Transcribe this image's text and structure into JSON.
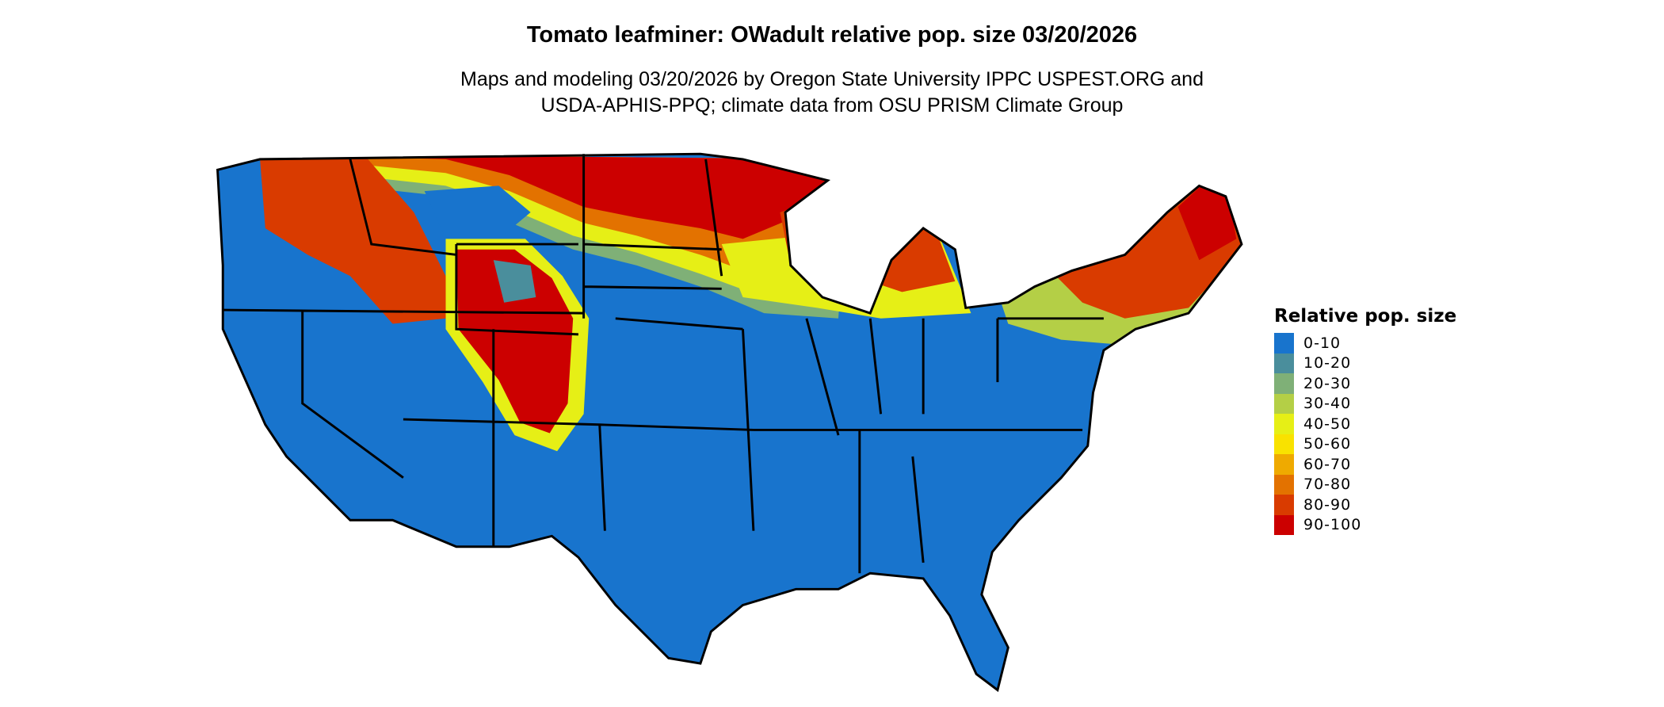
{
  "title": "Tomato leafminer: OWadult relative pop. size 03/20/2026",
  "subtitle_line1": "Maps and modeling 03/20/2026 by Oregon State University IPPC USPEST.ORG and",
  "subtitle_line2": "USDA-APHIS-PPQ; climate data from OSU PRISM Climate Group",
  "map": {
    "region": "Contiguous United States with state borders",
    "dominant_class": "0-10",
    "high_value_regions": [
      "Montana",
      "North Dakota",
      "Minnesota",
      "Wyoming",
      "Colorado",
      "Idaho",
      "Northern Michigan",
      "Wisconsin",
      "New England",
      "New York"
    ]
  },
  "legend": {
    "title": "Relative pop. size",
    "placement": "right",
    "items": [
      {
        "label": "0-10",
        "color": "#1874cd"
      },
      {
        "label": "10-20",
        "color": "#4a8e9c"
      },
      {
        "label": "20-30",
        "color": "#7fb077"
      },
      {
        "label": "30-40",
        "color": "#b4cf46"
      },
      {
        "label": "40-50",
        "color": "#e6ef16"
      },
      {
        "label": "50-60",
        "color": "#f9e200"
      },
      {
        "label": "60-70",
        "color": "#efaa00"
      },
      {
        "label": "70-80",
        "color": "#e37200"
      },
      {
        "label": "80-90",
        "color": "#d93b00"
      },
      {
        "label": "90-100",
        "color": "#cc0000"
      }
    ]
  }
}
